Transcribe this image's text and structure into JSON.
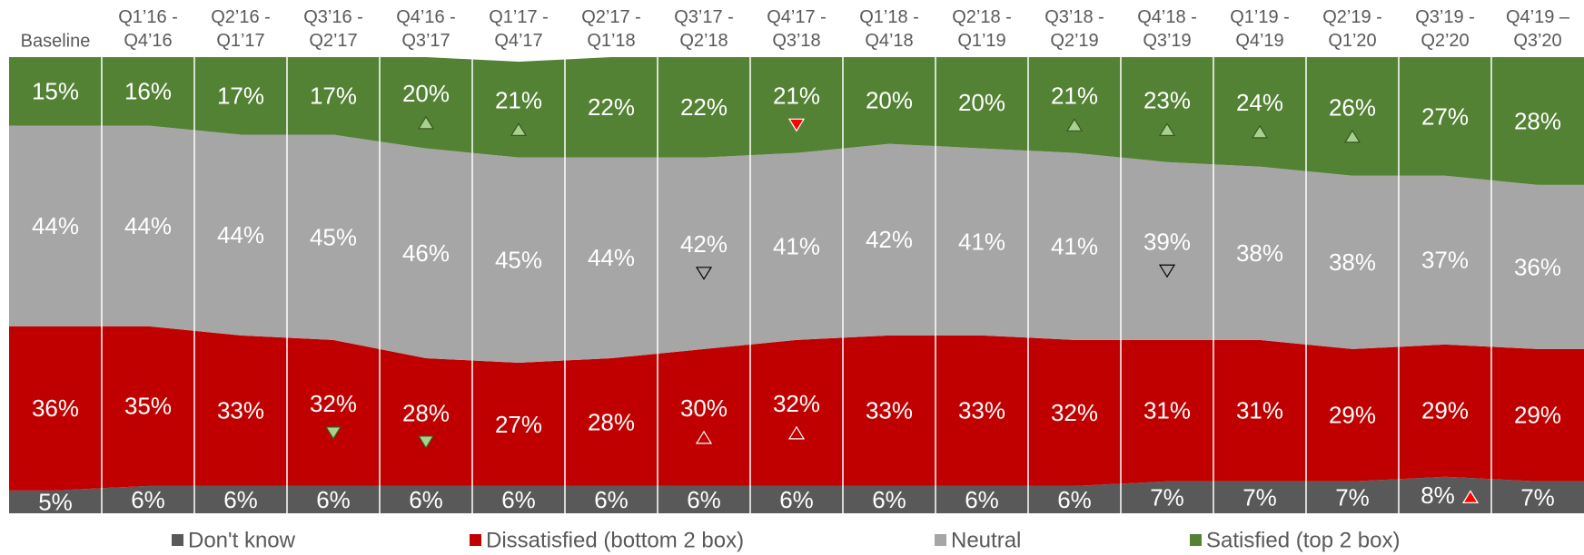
{
  "chart_data": {
    "type": "stacked_area",
    "categories": [
      "Baseline",
      "Q1’16 - Q4’16",
      "Q2’16 - Q1’17",
      "Q3’16 - Q2’17",
      "Q4’16 - Q3’17",
      "Q1’17 - Q4’17",
      "Q2’17 - Q1’18",
      "Q3’17 - Q2’18",
      "Q4’17 - Q3’18",
      "Q1’18 - Q4’18",
      "Q2’18 - Q1’19",
      "Q3’18 - Q2’19",
      "Q4’18 - Q3’19",
      "Q1’19 - Q4’19",
      "Q2’19 - Q1’20",
      "Q3’19 - Q2’20",
      "Q4’19 – Q3’20"
    ],
    "ylim": [
      0,
      100
    ],
    "legend": "bottom",
    "series": [
      {
        "name": "Don't know",
        "color": "#595959",
        "values": [
          5,
          6,
          6,
          6,
          6,
          6,
          6,
          6,
          6,
          6,
          6,
          6,
          7,
          7,
          7,
          8,
          7
        ],
        "value_labels": [
          "5%",
          "6%",
          "6%",
          "6%",
          "6%",
          "6%",
          "6%",
          "6%",
          "6%",
          "6%",
          "6%",
          "6%",
          "7%",
          "7%",
          "7%",
          "8%",
          "7%"
        ],
        "markers": [
          null,
          null,
          null,
          null,
          null,
          null,
          null,
          null,
          null,
          null,
          null,
          null,
          null,
          null,
          null,
          {
            "dir": "up",
            "fill": "#ff0000",
            "stroke": "#ffffff"
          },
          null
        ]
      },
      {
        "name": "Dissatisfied (bottom 2 box)",
        "color": "#c00000",
        "values": [
          36,
          35,
          33,
          32,
          28,
          27,
          28,
          30,
          32,
          33,
          33,
          32,
          31,
          31,
          29,
          29,
          29
        ],
        "value_labels": [
          "36%",
          "35%",
          "33%",
          "32%",
          "28%",
          "27%",
          "28%",
          "30%",
          "32%",
          "33%",
          "33%",
          "32%",
          "31%",
          "31%",
          "29%",
          "29%",
          "29%"
        ],
        "markers": [
          null,
          null,
          null,
          {
            "dir": "down",
            "fill": "#a9d18e",
            "stroke": "#385723"
          },
          {
            "dir": "down",
            "fill": "#a9d18e",
            "stroke": "#385723"
          },
          null,
          null,
          {
            "dir": "up",
            "fill": "#c00000",
            "stroke": "#ffffff"
          },
          {
            "dir": "up",
            "fill": "#c00000",
            "stroke": "#ffffff"
          },
          null,
          null,
          null,
          null,
          null,
          null,
          null,
          null
        ]
      },
      {
        "name": "Neutral",
        "color": "#a6a6a6",
        "values": [
          44,
          44,
          44,
          45,
          46,
          45,
          44,
          42,
          41,
          42,
          41,
          41,
          39,
          38,
          38,
          37,
          36
        ],
        "value_labels": [
          "44%",
          "44%",
          "44%",
          "45%",
          "46%",
          "45%",
          "44%",
          "42%",
          "41%",
          "42%",
          "41%",
          "41%",
          "39%",
          "38%",
          "38%",
          "37%",
          "36%"
        ],
        "markers": [
          null,
          null,
          null,
          null,
          null,
          null,
          null,
          {
            "dir": "down",
            "fill": "none",
            "stroke": "#000000"
          },
          null,
          null,
          null,
          null,
          {
            "dir": "down",
            "fill": "none",
            "stroke": "#000000"
          },
          null,
          null,
          null,
          null
        ]
      },
      {
        "name": "Satisfied (top 2 box)",
        "color": "#548235",
        "values": [
          15,
          16,
          17,
          17,
          20,
          21,
          22,
          22,
          21,
          20,
          20,
          21,
          23,
          24,
          26,
          27,
          28
        ],
        "value_labels": [
          "15%",
          "16%",
          "17%",
          "17%",
          "20%",
          "21%",
          "22%",
          "22%",
          "21%",
          "20%",
          "20%",
          "21%",
          "23%",
          "24%",
          "26%",
          "27%",
          "28%"
        ],
        "markers": [
          null,
          null,
          null,
          null,
          {
            "dir": "up",
            "fill": "#a9d18e",
            "stroke": "#385723"
          },
          {
            "dir": "up",
            "fill": "#a9d18e",
            "stroke": "#385723"
          },
          null,
          null,
          {
            "dir": "down",
            "fill": "#ff0000",
            "stroke": "#ffffff"
          },
          null,
          null,
          {
            "dir": "up",
            "fill": "#a9d18e",
            "stroke": "#385723"
          },
          {
            "dir": "up",
            "fill": "#a9d18e",
            "stroke": "#385723"
          },
          {
            "dir": "up",
            "fill": "#a9d18e",
            "stroke": "#385723"
          },
          {
            "dir": "up",
            "fill": "#a9d18e",
            "stroke": "#385723"
          },
          null,
          null
        ]
      }
    ]
  }
}
